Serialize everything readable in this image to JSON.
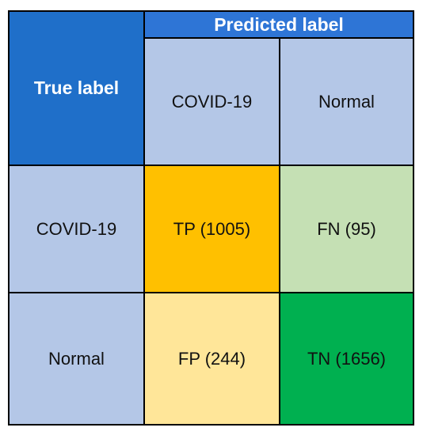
{
  "matrix": {
    "true_label": "True label",
    "predicted_label": "Predicted label",
    "column_headers": [
      "COVID-19",
      "Normal"
    ],
    "row_headers": [
      "COVID-19",
      "Normal"
    ],
    "cells": [
      [
        "TP (1005)",
        "FN (95)"
      ],
      [
        "FP (244)",
        "TN (1656)"
      ]
    ]
  },
  "colors": {
    "border": "#000000",
    "header_dark_blue": "#1f6fc9",
    "header_blue": "#2e75d6",
    "label_blue": "#b4c7e7",
    "tp": "#ffc000",
    "fn": "#c5e0b4",
    "fp": "#ffe699",
    "tn": "#00b050"
  }
}
